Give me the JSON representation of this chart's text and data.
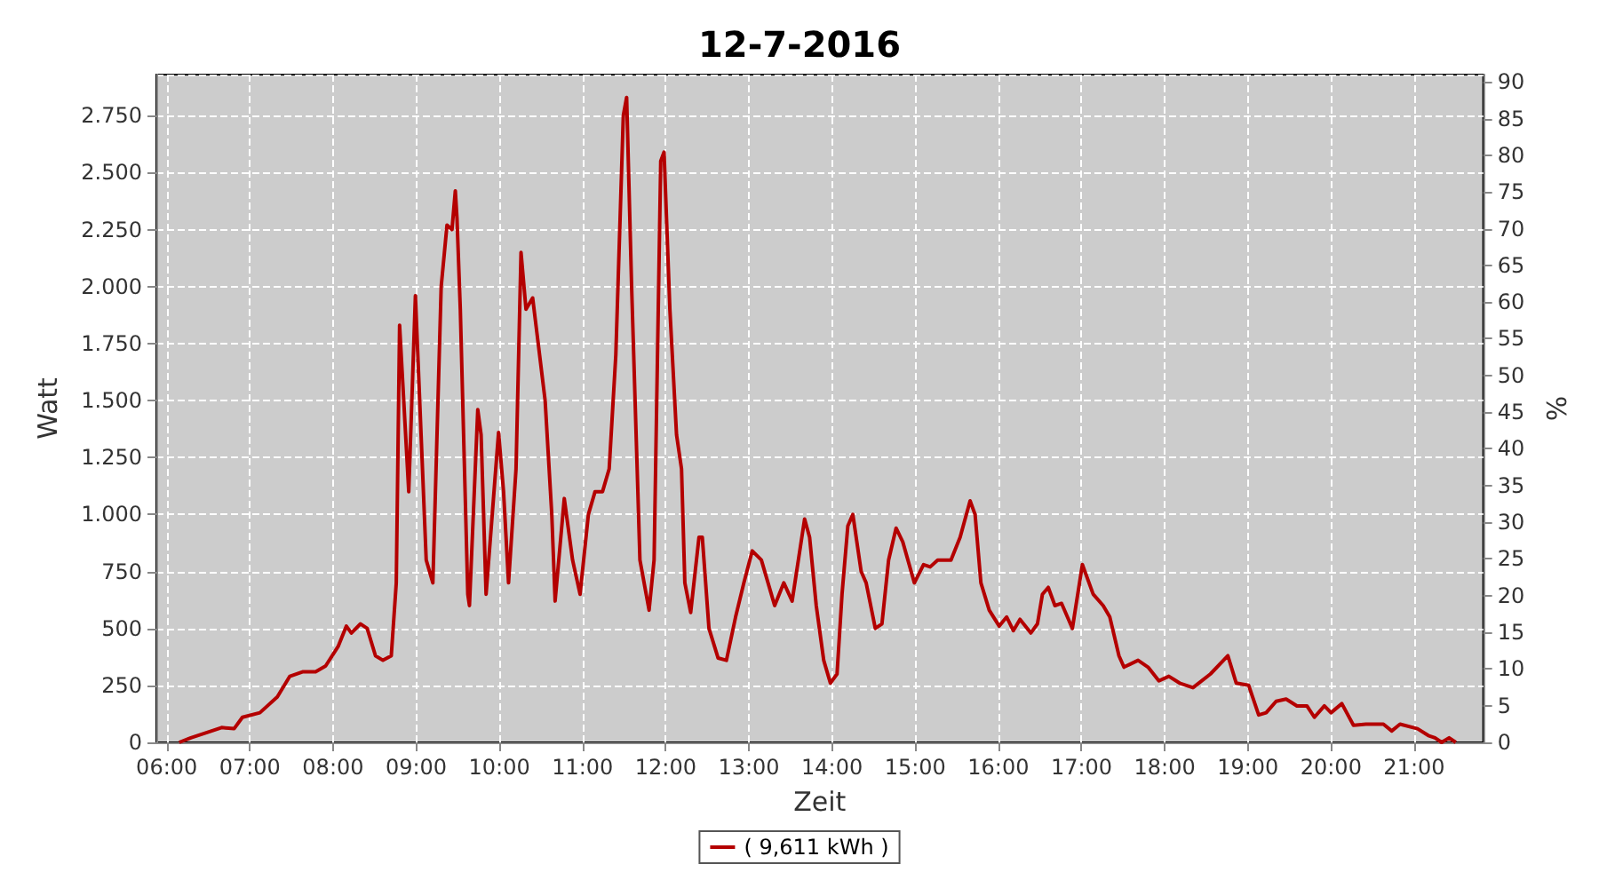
{
  "chart_data": {
    "type": "line",
    "title": "12-7-2016",
    "xlabel": "Zeit",
    "ylabel": "Watt",
    "y2label": "%",
    "xlim": [
      5.875,
      21.83
    ],
    "ylim": [
      0,
      2930
    ],
    "y2lim": [
      0,
      91
    ],
    "xticks": [
      {
        "value": 6,
        "label": "06:00"
      },
      {
        "value": 7,
        "label": "07:00"
      },
      {
        "value": 8,
        "label": "08:00"
      },
      {
        "value": 9,
        "label": "09:00"
      },
      {
        "value": 10,
        "label": "10:00"
      },
      {
        "value": 11,
        "label": "11:00"
      },
      {
        "value": 12,
        "label": "12:00"
      },
      {
        "value": 13,
        "label": "13:00"
      },
      {
        "value": 14,
        "label": "14:00"
      },
      {
        "value": 15,
        "label": "15:00"
      },
      {
        "value": 16,
        "label": "16:00"
      },
      {
        "value": 17,
        "label": "17:00"
      },
      {
        "value": 18,
        "label": "18:00"
      },
      {
        "value": 19,
        "label": "19:00"
      },
      {
        "value": 20,
        "label": "20:00"
      },
      {
        "value": 21,
        "label": "21:00"
      }
    ],
    "yticks": [
      0,
      250,
      500,
      750,
      {
        "value": 1000,
        "label": "1.000"
      },
      {
        "value": 1250,
        "label": "1.250"
      },
      {
        "value": 1500,
        "label": "1.500"
      },
      {
        "value": 1750,
        "label": "1.750"
      },
      {
        "value": 2000,
        "label": "2.000"
      },
      {
        "value": 2250,
        "label": "2.250"
      },
      {
        "value": 2500,
        "label": "2.500"
      },
      {
        "value": 2750,
        "label": "2.750"
      }
    ],
    "y2ticks": [
      0,
      5,
      10,
      15,
      20,
      25,
      30,
      35,
      40,
      45,
      50,
      55,
      60,
      65,
      70,
      75,
      80,
      85,
      90
    ],
    "grid": true,
    "legend": "bottom",
    "marker": "none",
    "line_style": "solid",
    "series": [
      {
        "name": "( 9,611 kWh )",
        "color": "#b40000",
        "x": [
          6.15,
          6.29,
          6.5,
          6.66,
          6.81,
          6.91,
          7.12,
          7.33,
          7.48,
          7.64,
          7.79,
          7.91,
          8.06,
          8.16,
          8.22,
          8.33,
          8.41,
          8.51,
          8.6,
          8.7,
          8.76,
          8.8,
          8.91,
          8.99,
          9.12,
          9.2,
          9.3,
          9.37,
          9.43,
          9.47,
          9.49,
          9.53,
          9.62,
          9.64,
          9.74,
          9.78,
          9.84,
          9.99,
          10.05,
          10.11,
          10.2,
          10.26,
          10.32,
          10.4,
          10.55,
          10.63,
          10.67,
          10.78,
          10.88,
          10.97,
          11.07,
          11.15,
          11.24,
          11.32,
          11.4,
          11.49,
          11.53,
          11.59,
          11.69,
          11.8,
          11.86,
          11.94,
          11.98,
          12.05,
          12.13,
          12.19,
          12.23,
          12.3,
          12.4,
          12.44,
          12.52,
          12.63,
          12.73,
          12.84,
          12.94,
          13.04,
          13.15,
          13.27,
          13.31,
          13.42,
          13.52,
          13.67,
          13.73,
          13.81,
          13.9,
          13.98,
          14.06,
          14.12,
          14.19,
          14.25,
          14.35,
          14.41,
          14.52,
          14.6,
          14.68,
          14.77,
          14.85,
          14.99,
          15.1,
          15.18,
          15.27,
          15.43,
          15.54,
          15.66,
          15.72,
          15.79,
          15.89,
          16.01,
          16.1,
          16.18,
          16.26,
          16.39,
          16.47,
          16.53,
          16.6,
          16.68,
          16.76,
          16.89,
          17.01,
          17.14,
          17.26,
          17.34,
          17.45,
          17.51,
          17.68,
          17.8,
          17.93,
          18.05,
          18.18,
          18.34,
          18.55,
          18.76,
          18.86,
          19.01,
          19.13,
          19.22,
          19.34,
          19.46,
          19.59,
          19.71,
          19.8,
          19.92,
          20.0,
          20.13,
          20.27,
          20.42,
          20.63,
          20.73,
          20.83,
          21.04,
          21.17,
          21.25,
          21.33,
          21.42,
          21.5
        ],
        "values": [
          0,
          20,
          45,
          65,
          60,
          110,
          130,
          200,
          290,
          310,
          310,
          335,
          420,
          510,
          480,
          520,
          500,
          380,
          360,
          380,
          700,
          1830,
          1100,
          1960,
          800,
          700,
          2000,
          2270,
          2250,
          2420,
          2300,
          1900,
          650,
          600,
          1460,
          1350,
          650,
          1360,
          1100,
          700,
          1200,
          2150,
          1900,
          1950,
          1500,
          1000,
          620,
          1070,
          800,
          650,
          1000,
          1100,
          1100,
          1200,
          1700,
          2750,
          2830,
          2000,
          800,
          580,
          800,
          2550,
          2590,
          1900,
          1350,
          1200,
          700,
          570,
          900,
          900,
          500,
          370,
          360,
          550,
          700,
          840,
          800,
          650,
          600,
          700,
          620,
          980,
          900,
          600,
          360,
          260,
          300,
          650,
          950,
          1000,
          750,
          700,
          500,
          520,
          800,
          940,
          880,
          700,
          780,
          770,
          800,
          800,
          900,
          1060,
          1000,
          700,
          580,
          510,
          550,
          490,
          540,
          480,
          520,
          650,
          680,
          600,
          610,
          500,
          780,
          650,
          600,
          550,
          380,
          330,
          360,
          330,
          270,
          290,
          260,
          240,
          300,
          380,
          260,
          250,
          120,
          130,
          180,
          190,
          160,
          160,
          110,
          160,
          130,
          170,
          75,
          80,
          80,
          50,
          80,
          60,
          30,
          20,
          0,
          20,
          0
        ]
      }
    ]
  }
}
